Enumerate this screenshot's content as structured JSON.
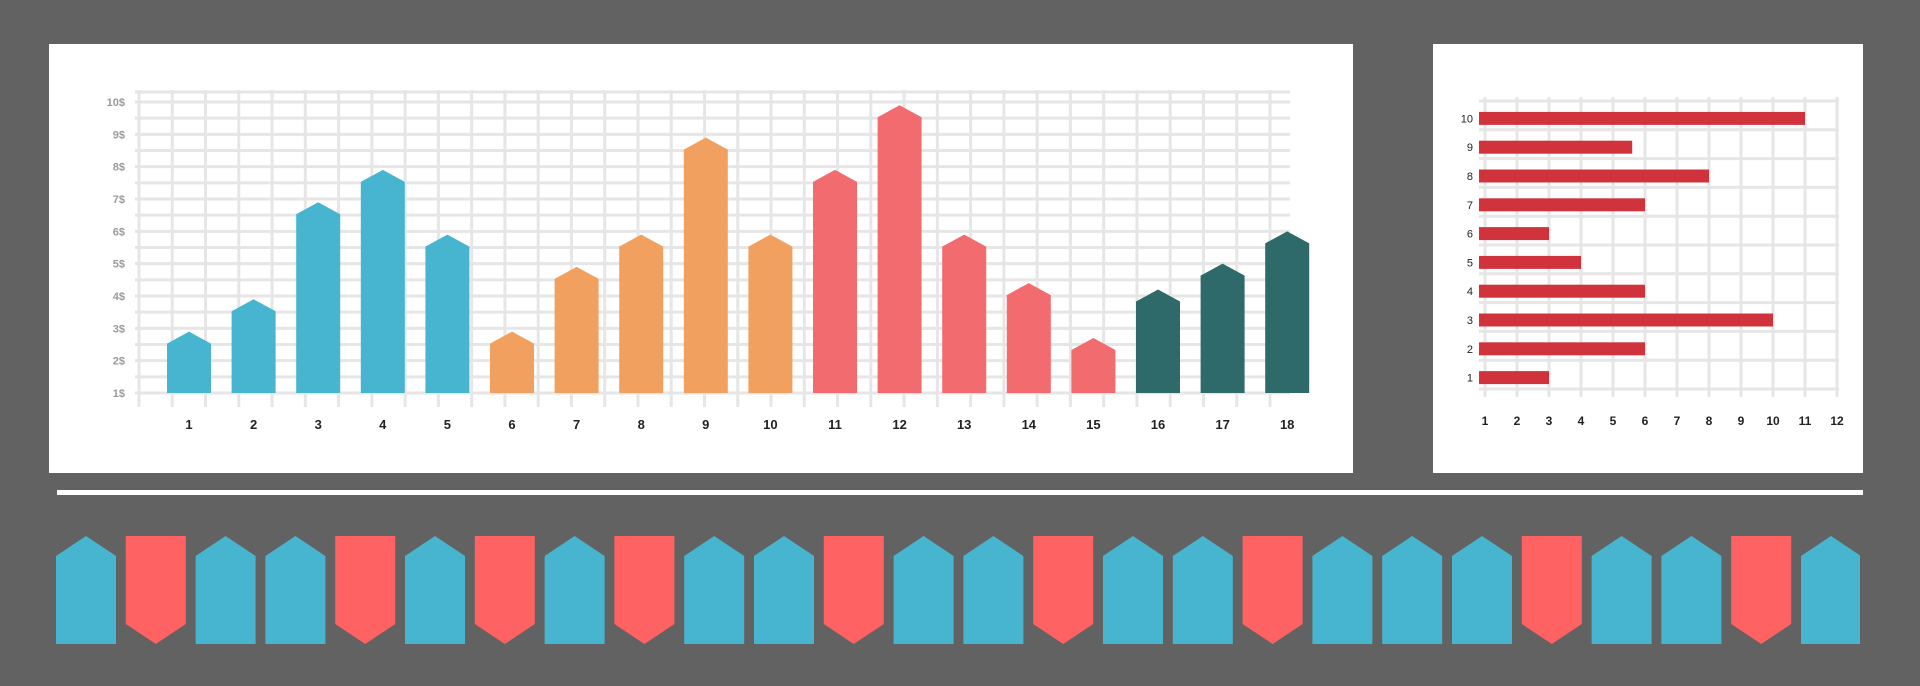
{
  "colors": {
    "background": "#626262",
    "panel": "#ffffff",
    "grid": "#e6e6e6",
    "blue": "#47b5cf",
    "orange": "#f2a05f",
    "red": "#f26b6f",
    "teal": "#2f6a6a",
    "hbar": "#d1333c",
    "tag_blue": "#47b5cf",
    "tag_red": "#ff6262",
    "ytick_text": "#9a9a9a",
    "xtick_text": "#222222"
  },
  "chart_data": [
    {
      "type": "bar",
      "orientation": "vertical",
      "categories": [
        "1",
        "2",
        "3",
        "4",
        "5",
        "6",
        "7",
        "8",
        "9",
        "10",
        "11",
        "12",
        "13",
        "14",
        "15",
        "16",
        "17",
        "18"
      ],
      "values": [
        2.9,
        3.9,
        6.9,
        7.9,
        5.9,
        2.9,
        4.9,
        5.9,
        8.9,
        5.9,
        7.9,
        9.9,
        5.9,
        4.4,
        2.7,
        4.2,
        5.0,
        6.0
      ],
      "bar_colors": [
        "blue",
        "blue",
        "blue",
        "blue",
        "blue",
        "orange",
        "orange",
        "orange",
        "orange",
        "orange",
        "red",
        "red",
        "red",
        "red",
        "red",
        "teal",
        "teal",
        "teal"
      ],
      "ytick_labels": [
        "1$",
        "2$",
        "3$",
        "4$",
        "5$",
        "6$",
        "7$",
        "8$",
        "9$",
        "10$"
      ],
      "ylim": [
        1,
        10
      ],
      "grid": true,
      "xlabel": "",
      "ylabel": "",
      "title": ""
    },
    {
      "type": "bar",
      "orientation": "horizontal",
      "categories": [
        "1",
        "2",
        "3",
        "4",
        "5",
        "6",
        "7",
        "8",
        "9",
        "10"
      ],
      "values": [
        3,
        6,
        10,
        6,
        4,
        3,
        6,
        8,
        5.6,
        11
      ],
      "xtick_labels": [
        "1",
        "2",
        "3",
        "4",
        "5",
        "6",
        "7",
        "8",
        "9",
        "10",
        "11",
        "12"
      ],
      "xlim": [
        1,
        12
      ],
      "grid": true,
      "xlabel": "",
      "ylabel": "",
      "title": ""
    }
  ],
  "tags_strip": {
    "sequence": [
      "up",
      "down",
      "up",
      "up",
      "down",
      "up",
      "down",
      "up",
      "down",
      "up",
      "up",
      "down",
      "up",
      "up",
      "down",
      "up",
      "up",
      "down",
      "up",
      "up",
      "up",
      "down",
      "up",
      "up",
      "down",
      "up"
    ]
  }
}
